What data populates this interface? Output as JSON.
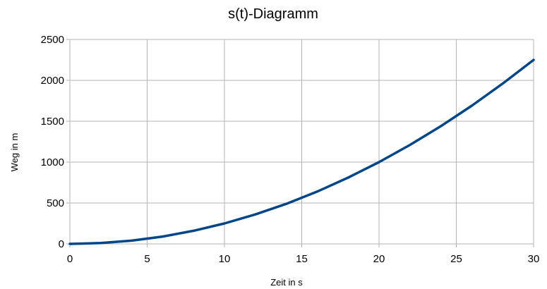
{
  "chart_data": {
    "type": "line",
    "title": "s(t)-Diagramm",
    "xlabel": "Zeit in s",
    "ylabel": "Weg in m",
    "xlim": [
      0,
      30
    ],
    "ylim": [
      0,
      2500
    ],
    "xticks": [
      0,
      5,
      10,
      15,
      20,
      25,
      30
    ],
    "yticks": [
      0,
      500,
      1000,
      1500,
      2000,
      2500
    ],
    "grid": true,
    "series": [
      {
        "color": "#004586",
        "x": [
          0,
          2,
          4,
          6,
          8,
          10,
          12,
          14,
          16,
          18,
          20,
          22,
          24,
          26,
          28,
          30
        ],
        "y": [
          0,
          10,
          40,
          90,
          160,
          250,
          360,
          490,
          640,
          810,
          1000,
          1210,
          1440,
          1690,
          1960,
          2250
        ]
      }
    ]
  }
}
